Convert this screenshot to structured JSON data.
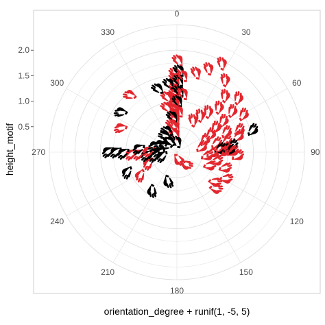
{
  "chart_data": {
    "type": "polar-scatter",
    "xlabel": "orientation_degree + runif(1, -5, 5)",
    "ylabel": "height_motif",
    "theta_ticks": [
      "0",
      "30",
      "60",
      "90",
      "120",
      "150",
      "180",
      "210",
      "240",
      "270",
      "300",
      "330"
    ],
    "r_ticks": [
      "0.5",
      "1.0",
      "1.5",
      "2.0"
    ],
    "r_tick_values": [
      0.5,
      1.0,
      1.5,
      2.0
    ],
    "r_range": [
      0,
      2.5
    ],
    "grid": true,
    "marker": "hand-icon",
    "colors": {
      "black": "#000000",
      "red": "#e3262e",
      "grid": "#e0e0e0",
      "panel_border": "#cfcfcf"
    },
    "points": [
      {
        "deg": 0,
        "r": 1.55,
        "color": "red"
      },
      {
        "deg": 0,
        "r": 1.45,
        "color": "red"
      },
      {
        "deg": 0,
        "r": 1.35,
        "color": "red"
      },
      {
        "deg": 0,
        "r": 1.25,
        "color": "red"
      },
      {
        "deg": 0,
        "r": 1.15,
        "color": "red"
      },
      {
        "deg": 0,
        "r": 1.05,
        "color": "red"
      },
      {
        "deg": 0,
        "r": 0.95,
        "color": "red"
      },
      {
        "deg": 0,
        "r": 0.85,
        "color": "red"
      },
      {
        "deg": 0,
        "r": 0.75,
        "color": "red"
      },
      {
        "deg": 0,
        "r": 0.65,
        "color": "red"
      },
      {
        "deg": 0,
        "r": 0.5,
        "color": "red"
      },
      {
        "deg": 0,
        "r": 0.35,
        "color": "red"
      },
      {
        "deg": 2,
        "r": 1.8,
        "color": "red"
      },
      {
        "deg": 3,
        "r": 1.6,
        "color": "black"
      },
      {
        "deg": 3,
        "r": 1.4,
        "color": "black"
      },
      {
        "deg": 4,
        "r": 1.2,
        "color": "black"
      },
      {
        "deg": 3,
        "r": 1.0,
        "color": "black"
      },
      {
        "deg": 5,
        "r": 0.8,
        "color": "red"
      },
      {
        "deg": 6,
        "r": 1.5,
        "color": "red"
      },
      {
        "deg": 8,
        "r": 1.15,
        "color": "red"
      },
      {
        "deg": 355,
        "r": 1.35,
        "color": "black"
      },
      {
        "deg": 352,
        "r": 1.1,
        "color": "red"
      },
      {
        "deg": 350,
        "r": 0.9,
        "color": "red"
      },
      {
        "deg": 356,
        "r": 0.7,
        "color": "black"
      },
      {
        "deg": 345,
        "r": 1.3,
        "color": "black"
      },
      {
        "deg": 354,
        "r": 0.55,
        "color": "red"
      },
      {
        "deg": 340,
        "r": 0.45,
        "color": "black"
      },
      {
        "deg": 330,
        "r": 0.4,
        "color": "black"
      },
      {
        "deg": 28,
        "r": 1.95,
        "color": "red"
      },
      {
        "deg": 22,
        "r": 1.75,
        "color": "red"
      },
      {
        "deg": 15,
        "r": 1.6,
        "color": "red"
      },
      {
        "deg": 35,
        "r": 1.7,
        "color": "red"
      },
      {
        "deg": 42,
        "r": 1.45,
        "color": "red"
      },
      {
        "deg": 50,
        "r": 1.6,
        "color": "red"
      },
      {
        "deg": 45,
        "r": 1.2,
        "color": "red"
      },
      {
        "deg": 40,
        "r": 1.0,
        "color": "red"
      },
      {
        "deg": 35,
        "r": 0.85,
        "color": "red"
      },
      {
        "deg": 30,
        "r": 0.7,
        "color": "red"
      },
      {
        "deg": 55,
        "r": 1.35,
        "color": "red"
      },
      {
        "deg": 58,
        "r": 1.1,
        "color": "red"
      },
      {
        "deg": 62,
        "r": 1.5,
        "color": "red"
      },
      {
        "deg": 60,
        "r": 0.9,
        "color": "red"
      },
      {
        "deg": 65,
        "r": 0.75,
        "color": "red"
      },
      {
        "deg": 70,
        "r": 0.6,
        "color": "red"
      },
      {
        "deg": 70,
        "r": 1.05,
        "color": "red"
      },
      {
        "deg": 72,
        "r": 1.3,
        "color": "red"
      },
      {
        "deg": 75,
        "r": 1.55,
        "color": "black"
      },
      {
        "deg": 77,
        "r": 1.25,
        "color": "red"
      },
      {
        "deg": 80,
        "r": 1.0,
        "color": "red"
      },
      {
        "deg": 80,
        "r": 0.8,
        "color": "red"
      },
      {
        "deg": 82,
        "r": 0.5,
        "color": "red"
      },
      {
        "deg": 85,
        "r": 1.1,
        "color": "black"
      },
      {
        "deg": 87,
        "r": 0.95,
        "color": "red"
      },
      {
        "deg": 88,
        "r": 0.85,
        "color": "black"
      },
      {
        "deg": 89,
        "r": 0.95,
        "color": "black"
      },
      {
        "deg": 90,
        "r": 1.0,
        "color": "red"
      },
      {
        "deg": 90,
        "r": 1.05,
        "color": "black"
      },
      {
        "deg": 91,
        "r": 1.1,
        "color": "red"
      },
      {
        "deg": 92,
        "r": 0.9,
        "color": "red"
      },
      {
        "deg": 94,
        "r": 0.7,
        "color": "red"
      },
      {
        "deg": 95,
        "r": 1.2,
        "color": "red"
      },
      {
        "deg": 100,
        "r": 0.6,
        "color": "red"
      },
      {
        "deg": 105,
        "r": 0.8,
        "color": "red"
      },
      {
        "deg": 110,
        "r": 1.0,
        "color": "red"
      },
      {
        "deg": 115,
        "r": 0.7,
        "color": "red"
      },
      {
        "deg": 120,
        "r": 1.1,
        "color": "red"
      },
      {
        "deg": 130,
        "r": 0.95,
        "color": "red"
      },
      {
        "deg": 135,
        "r": 1.05,
        "color": "red"
      },
      {
        "deg": 150,
        "r": 0.3,
        "color": "red"
      },
      {
        "deg": 180,
        "r": 0.15,
        "color": "red"
      },
      {
        "deg": 200,
        "r": 0.6,
        "color": "black"
      },
      {
        "deg": 215,
        "r": 0.9,
        "color": "black"
      },
      {
        "deg": 240,
        "r": 0.85,
        "color": "red"
      },
      {
        "deg": 250,
        "r": 1.05,
        "color": "black"
      },
      {
        "deg": 252,
        "r": 0.6,
        "color": "red"
      },
      {
        "deg": 262,
        "r": 0.3,
        "color": "black"
      },
      {
        "deg": 265,
        "r": 0.45,
        "color": "black"
      },
      {
        "deg": 268,
        "r": 0.6,
        "color": "black"
      },
      {
        "deg": 270,
        "r": 0.75,
        "color": "red"
      },
      {
        "deg": 270,
        "r": 0.9,
        "color": "red"
      },
      {
        "deg": 271,
        "r": 1.05,
        "color": "black"
      },
      {
        "deg": 272,
        "r": 1.2,
        "color": "black"
      },
      {
        "deg": 272,
        "r": 1.35,
        "color": "black"
      },
      {
        "deg": 275,
        "r": 0.35,
        "color": "black"
      },
      {
        "deg": 276,
        "r": 0.55,
        "color": "red"
      },
      {
        "deg": 278,
        "r": 0.75,
        "color": "black"
      },
      {
        "deg": 290,
        "r": 0.45,
        "color": "black"
      },
      {
        "deg": 295,
        "r": 1.2,
        "color": "red"
      },
      {
        "deg": 300,
        "r": 0.35,
        "color": "black"
      },
      {
        "deg": 307,
        "r": 1.35,
        "color": "black"
      },
      {
        "deg": 310,
        "r": 0.25,
        "color": "black"
      },
      {
        "deg": 322,
        "r": 1.45,
        "color": "red"
      },
      {
        "deg": 335,
        "r": 0.25,
        "color": "black"
      },
      {
        "deg": 10,
        "r": 0.2,
        "color": "black"
      }
    ]
  }
}
